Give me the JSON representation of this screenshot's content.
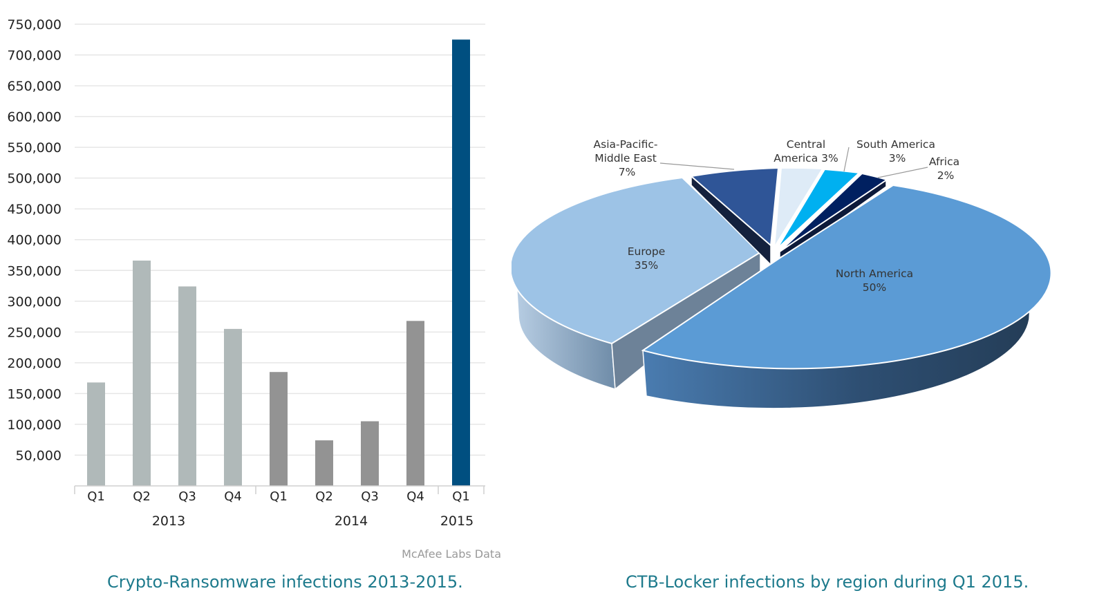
{
  "chart_data": [
    {
      "type": "bar",
      "title": "Crypto-Ransomware infections 2013-2015.",
      "source": "McAfee Labs Data",
      "categories": [
        "Q1",
        "Q2",
        "Q3",
        "Q4",
        "Q1",
        "Q2",
        "Q3",
        "Q4",
        "Q1"
      ],
      "groups": [
        {
          "label": "2013",
          "categories": [
            "Q1",
            "Q2",
            "Q3",
            "Q4"
          ]
        },
        {
          "label": "2014",
          "categories": [
            "Q1",
            "Q2",
            "Q3",
            "Q4"
          ]
        },
        {
          "label": "2015",
          "categories": [
            "Q1"
          ]
        }
      ],
      "values": [
        168000,
        366000,
        324000,
        255000,
        185000,
        74000,
        105000,
        268000,
        725000
      ],
      "colors": [
        "#b0b9b9",
        "#b0b9b9",
        "#b0b9b9",
        "#b0b9b9",
        "#939393",
        "#939393",
        "#939393",
        "#939393",
        "#004f80"
      ],
      "yticks": [
        "50,000",
        "100,000",
        "150,000",
        "200,000",
        "250,000",
        "300,000",
        "350,000",
        "400,000",
        "450,000",
        "500,000",
        "550,000",
        "600,000",
        "650,000",
        "700,000",
        "750,000"
      ],
      "ylim": [
        0,
        750000
      ],
      "grid": true,
      "xlabel": "",
      "ylabel": ""
    },
    {
      "type": "pie",
      "title": "CTB-Locker infections by region during Q1 2015.",
      "slices": [
        {
          "label": "North America",
          "value": 50,
          "label_pct": "50%",
          "color": "#5b9bd5"
        },
        {
          "label": "Europe",
          "value": 35,
          "label_pct": "35%",
          "color": "#9dc3e6"
        },
        {
          "label": "Asia-Pacific-Middle East",
          "value": 7,
          "label_pct": "7%",
          "color": "#2f5597"
        },
        {
          "label": "Central America",
          "value": 3,
          "label_pct": "3%",
          "color": "#deebf7"
        },
        {
          "label": "South America",
          "value": 3,
          "label_pct": "3%",
          "color": "#00b0f0"
        },
        {
          "label": "Africa",
          "value": 2,
          "label_pct": "2%",
          "color": "#002060"
        }
      ],
      "exploded": true,
      "style": "3d"
    }
  ],
  "labels": {
    "na_line1": "North America",
    "eu_line1": "Europe",
    "apme_line1": "Asia-Pacific-",
    "apme_line2": "Middle East",
    "ca_line1": "Central",
    "ca_line2": "America 3%",
    "sa_line1": "South America",
    "af_line1": "Africa"
  }
}
